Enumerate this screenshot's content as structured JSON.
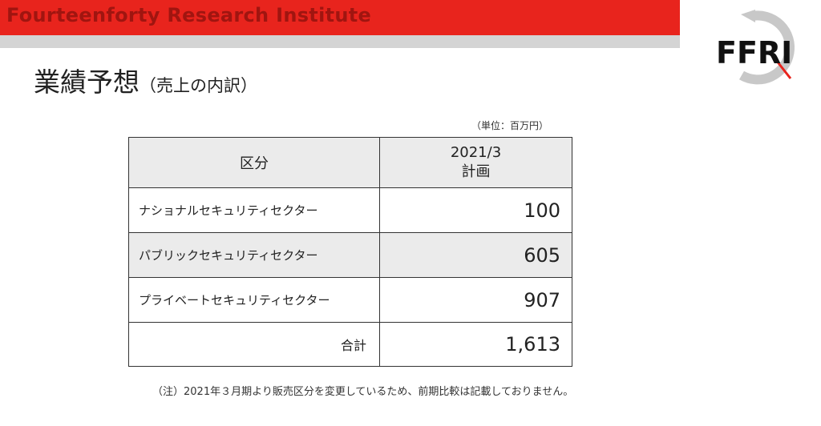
{
  "header": {
    "brand_text": "Fourteenforty Research Institute",
    "logo_text": "FFRI",
    "accent_color": "#e8241d",
    "band_color": "#d4d4d4"
  },
  "title": {
    "main": "業績予想",
    "subtitle": "（売上の内訳）"
  },
  "unit_note": "（単位：百万円）",
  "table": {
    "col_category": "区分",
    "col_period_line1": "2021/3",
    "col_period_line2": "計画",
    "rows": [
      {
        "label": "ナショナルセキュリティセクター",
        "value": "100"
      },
      {
        "label": "パブリックセキュリティセクター",
        "value": "605"
      },
      {
        "label": "プライベートセキュリティセクター",
        "value": "907"
      }
    ],
    "total": {
      "label": "合計",
      "value": "1,613"
    }
  },
  "footnote": "（注）2021年３月期より販売区分を変更しているため、前期比較は記載しておりません。"
}
